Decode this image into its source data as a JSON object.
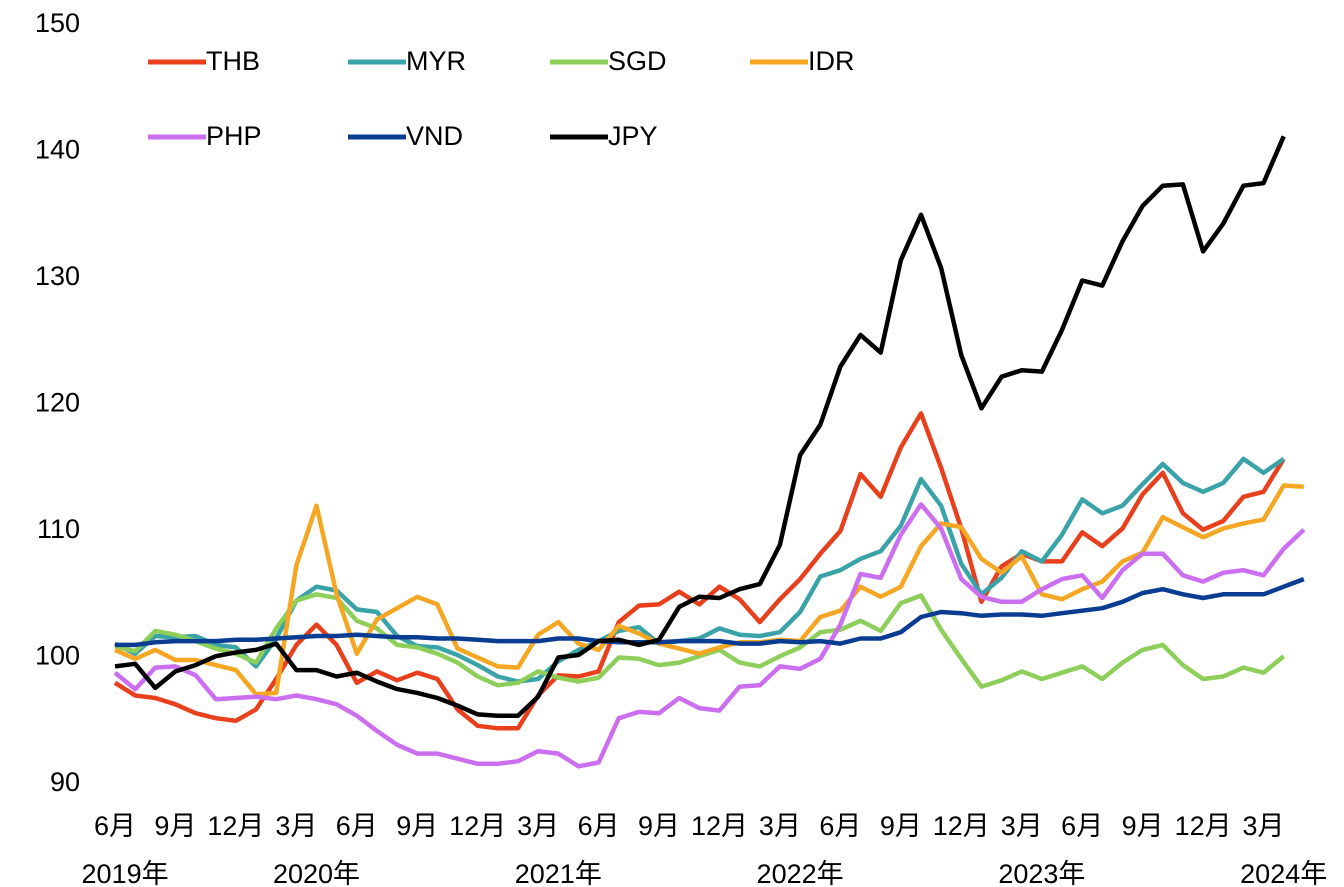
{
  "chart_data": {
    "type": "line",
    "categories": [
      "6月",
      null,
      null,
      "9月",
      null,
      null,
      "12月",
      null,
      null,
      "3月",
      null,
      null,
      "6月",
      null,
      null,
      "9月",
      null,
      null,
      "12月",
      null,
      null,
      "3月",
      null,
      null,
      "6月",
      null,
      null,
      "9月",
      null,
      null,
      "12月",
      null,
      null,
      "3月",
      null,
      null,
      "6月",
      null,
      null,
      "9月",
      null,
      null,
      "12月",
      null,
      null,
      "3月",
      null,
      null,
      "6月",
      null,
      null,
      "9月",
      null,
      null,
      "12月",
      null,
      null,
      "3月",
      null,
      null
    ],
    "x_group_labels": [
      "2019年",
      "2020年",
      "2021年",
      "2022年",
      "2023年",
      "2024年"
    ],
    "ylim": [
      90,
      150
    ],
    "yticks": [
      90,
      100,
      110,
      120,
      130,
      140,
      150
    ],
    "grid": false,
    "legend": "top-left",
    "series": [
      {
        "name": "THB",
        "color": "#e8401c",
        "values": [
          98.0,
          97.0,
          96.8,
          96.3,
          95.6,
          95.2,
          95.0,
          95.9,
          98.3,
          101.0,
          102.6,
          101.0,
          98.0,
          98.9,
          98.2,
          98.8,
          98.3,
          95.9,
          94.6,
          94.4,
          94.4,
          97.0,
          98.6,
          98.5,
          98.9,
          102.8,
          104.1,
          104.2,
          105.2,
          104.2,
          105.6,
          104.6,
          102.8,
          104.6,
          106.2,
          108.2,
          110.0,
          114.5,
          112.7,
          116.6,
          119.3,
          115.0,
          110.2,
          104.4,
          107.2,
          108.2,
          107.6,
          107.6,
          109.9,
          108.8,
          110.2,
          112.9,
          114.6,
          111.4,
          110.1,
          110.8,
          112.7,
          113.1,
          115.7,
          null
        ]
      },
      {
        "name": "MYR",
        "color": "#3aa3a8",
        "values": [
          101.1,
          100.3,
          101.7,
          101.6,
          101.7,
          101.0,
          100.8,
          99.3,
          101.5,
          104.5,
          105.6,
          105.3,
          103.8,
          103.6,
          101.7,
          100.9,
          100.8,
          100.2,
          99.4,
          98.5,
          98.1,
          98.3,
          99.7,
          100.6,
          101.3,
          102.1,
          102.4,
          101.1,
          101.3,
          101.5,
          102.3,
          101.8,
          101.7,
          102.0,
          103.6,
          106.4,
          106.9,
          107.8,
          108.4,
          110.4,
          114.1,
          112.0,
          107.4,
          105.0,
          106.3,
          108.4,
          107.6,
          109.7,
          112.5,
          111.4,
          112.0,
          113.7,
          115.3,
          113.8,
          113.1,
          113.8,
          115.7,
          114.6,
          115.7,
          null
        ]
      },
      {
        "name": "SGD",
        "color": "#8dcf5a",
        "values": [
          100.9,
          100.5,
          102.1,
          101.8,
          101.3,
          100.7,
          100.3,
          99.6,
          102.3,
          104.5,
          105.0,
          104.7,
          102.9,
          102.3,
          101.0,
          100.8,
          100.3,
          99.6,
          98.5,
          97.8,
          98.0,
          98.9,
          98.4,
          98.1,
          98.4,
          100.0,
          99.9,
          99.4,
          99.6,
          100.1,
          100.6,
          99.6,
          99.3,
          100.1,
          100.8,
          102.0,
          102.2,
          102.9,
          102.1,
          104.3,
          104.9,
          102.2,
          99.9,
          97.7,
          98.2,
          98.9,
          98.3,
          98.8,
          99.3,
          98.3,
          99.6,
          100.6,
          101.0,
          99.4,
          98.3,
          98.5,
          99.2,
          98.8,
          100.1,
          null
        ]
      },
      {
        "name": "IDR",
        "color": "#f5a623",
        "values": [
          100.6,
          99.9,
          100.6,
          99.8,
          99.8,
          99.4,
          99.0,
          97.1,
          97.2,
          107.3,
          112.0,
          105.0,
          100.3,
          103.0,
          103.9,
          104.8,
          104.2,
          100.7,
          100.0,
          99.3,
          99.2,
          101.8,
          102.8,
          101.1,
          100.6,
          102.5,
          101.9,
          101.1,
          100.7,
          100.3,
          100.8,
          101.2,
          101.2,
          101.4,
          101.3,
          103.2,
          103.7,
          105.6,
          104.8,
          105.6,
          108.8,
          110.6,
          110.3,
          107.8,
          106.7,
          108.0,
          105.0,
          104.6,
          105.4,
          106.0,
          107.6,
          108.3,
          111.1,
          110.3,
          109.5,
          110.2,
          110.6,
          110.9,
          113.6,
          113.5
        ]
      },
      {
        "name": "PHP",
        "color": "#cc6ef0",
        "values": [
          98.8,
          97.5,
          99.2,
          99.3,
          98.6,
          96.7,
          96.8,
          96.9,
          96.7,
          97.0,
          96.7,
          96.3,
          95.4,
          94.2,
          93.1,
          92.4,
          92.4,
          92.0,
          91.6,
          91.6,
          91.8,
          92.6,
          92.4,
          91.4,
          91.7,
          95.2,
          95.7,
          95.6,
          96.8,
          96.0,
          95.8,
          97.7,
          97.8,
          99.3,
          99.1,
          99.9,
          102.6,
          106.6,
          106.3,
          109.7,
          112.1,
          110.2,
          106.2,
          104.8,
          104.4,
          104.4,
          105.4,
          106.2,
          106.5,
          104.7,
          106.9,
          108.2,
          108.2,
          106.5,
          106.0,
          106.7,
          106.9,
          106.5,
          108.6,
          110.1
        ]
      },
      {
        "name": "VND",
        "color": "#0a3d91",
        "values": [
          101.0,
          101.0,
          101.2,
          101.3,
          101.3,
          101.3,
          101.4,
          101.4,
          101.5,
          101.6,
          101.7,
          101.7,
          101.8,
          101.7,
          101.6,
          101.6,
          101.5,
          101.5,
          101.4,
          101.3,
          101.3,
          101.3,
          101.5,
          101.5,
          101.3,
          101.2,
          101.2,
          101.2,
          101.3,
          101.3,
          101.3,
          101.1,
          101.1,
          101.3,
          101.2,
          101.3,
          101.1,
          101.5,
          101.5,
          102.0,
          103.2,
          103.6,
          103.5,
          103.3,
          103.4,
          103.4,
          103.3,
          103.5,
          103.7,
          103.9,
          104.4,
          105.1,
          105.4,
          105.0,
          104.7,
          105.0,
          105.0,
          105.0,
          105.6,
          106.2
        ]
      },
      {
        "name": "JPY",
        "color": "#000000",
        "values": [
          99.3,
          99.5,
          97.6,
          98.9,
          99.4,
          100.1,
          100.4,
          100.6,
          101.1,
          99.0,
          99.0,
          98.5,
          98.8,
          98.1,
          97.5,
          97.2,
          96.8,
          96.2,
          95.5,
          95.4,
          95.4,
          96.9,
          100.0,
          100.2,
          101.3,
          101.4,
          101.0,
          101.4,
          104.0,
          104.8,
          104.7,
          105.4,
          105.8,
          108.9,
          116.0,
          118.4,
          123.0,
          125.5,
          124.1,
          131.4,
          135.0,
          130.8,
          123.9,
          119.7,
          122.2,
          122.7,
          122.6,
          125.9,
          129.8,
          129.4,
          132.9,
          135.7,
          137.3,
          137.4,
          132.1,
          134.3,
          137.3,
          137.5,
          141.2,
          null
        ]
      }
    ]
  }
}
